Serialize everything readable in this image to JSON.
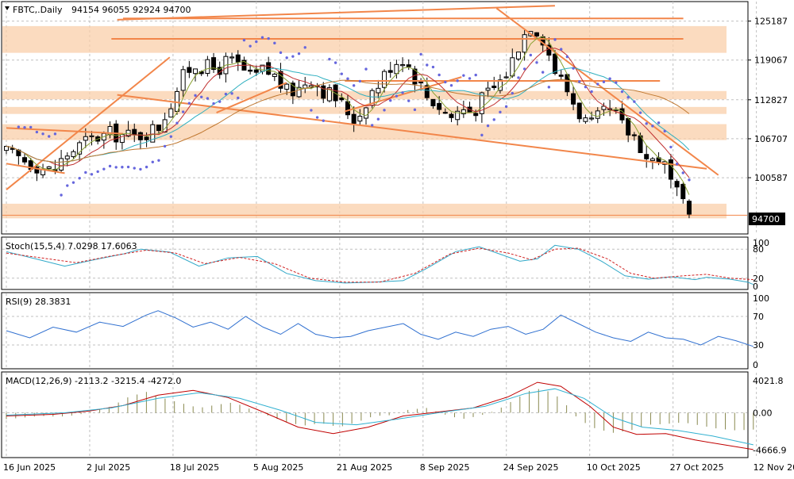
{
  "header": {
    "symbol": "FBTC,.Daily",
    "ohlc": "94154 96055 92924 94700"
  },
  "colors": {
    "background": "#ffffff",
    "grid": "#c0c0c0",
    "frame": "#000000",
    "bull": "#ffffff",
    "bear": "#000000",
    "zone": "#f9cfa9",
    "trend": "#f2864a",
    "psar": "#6666dd",
    "ma_fast": "#88a030",
    "ma_mid": "#c03030",
    "ma_slow": "#30b0c0",
    "ma_long": "#c07830",
    "stoch_main": "#30a8c8",
    "stoch_signal": "#d02020",
    "rsi": "#3070d0",
    "macd_hist": "#8a8a50",
    "macd_line": "#c00000",
    "macd_signal": "#30b0d0"
  },
  "chart_data": [
    {
      "type": "candlestick",
      "panel": "price",
      "symbol": "FBTC",
      "timeframe": "Daily",
      "last_price": 94700,
      "last_price_label": "94700",
      "ylim": [
        92000,
        128000
      ],
      "y_ticks": [
        125187,
        119067,
        112827,
        106707,
        100587
      ],
      "y_tick_labels": [
        "125187",
        "119067",
        "112827",
        "106707",
        "100587"
      ],
      "x_labels": [
        "16 Jun 2025",
        "2 Jul 2025",
        "18 Jul 2025",
        "5 Aug 2025",
        "21 Aug 2025",
        "8 Sep 2025",
        "24 Sep 2025",
        "10 Oct 2025",
        "27 Oct 2025",
        "12 Nov 2025"
      ],
      "x_label_index": [
        0,
        12,
        24,
        36,
        48,
        60,
        72,
        84,
        96,
        108
      ],
      "num_bars": 113,
      "close_path": [
        [
          0,
          104500
        ],
        [
          4,
          103000
        ],
        [
          8,
          101500
        ],
        [
          10,
          104000
        ],
        [
          14,
          106500
        ],
        [
          18,
          107500
        ],
        [
          22,
          107000
        ],
        [
          26,
          108500
        ],
        [
          28,
          112000
        ],
        [
          30,
          116000
        ],
        [
          32,
          118500
        ],
        [
          34,
          118000
        ],
        [
          36,
          117500
        ],
        [
          38,
          119000
        ],
        [
          40,
          118000
        ],
        [
          42,
          116000
        ],
        [
          44,
          117500
        ],
        [
          46,
          116500
        ],
        [
          48,
          114000
        ],
        [
          50,
          114500
        ],
        [
          52,
          116500
        ],
        [
          54,
          114500
        ],
        [
          56,
          113500
        ],
        [
          58,
          111500
        ],
        [
          60,
          109500
        ],
        [
          62,
          113500
        ],
        [
          64,
          115500
        ],
        [
          66,
          118500
        ],
        [
          68,
          119500
        ],
        [
          70,
          116500
        ],
        [
          72,
          113500
        ],
        [
          74,
          112000
        ],
        [
          76,
          110000
        ],
        [
          78,
          111500
        ],
        [
          80,
          111000
        ],
        [
          82,
          113500
        ],
        [
          84,
          115000
        ],
        [
          86,
          117500
        ],
        [
          88,
          122000
        ],
        [
          90,
          125000
        ],
        [
          92,
          122500
        ],
        [
          94,
          117500
        ],
        [
          96,
          114500
        ],
        [
          98,
          111000
        ],
        [
          100,
          108500
        ],
        [
          102,
          110500
        ],
        [
          104,
          111000
        ],
        [
          106,
          108000
        ],
        [
          108,
          107000
        ],
        [
          110,
          103000
        ],
        [
          112,
          104000
        ],
        [
          113,
          102000
        ],
        [
          114,
          99500
        ],
        [
          116,
          96000
        ],
        [
          117,
          94700
        ]
      ],
      "zones": [
        [
          124400,
          120200
        ],
        [
          114200,
          112900
        ],
        [
          111700,
          110600
        ],
        [
          109000,
          106500
        ],
        [
          96500,
          94200
        ]
      ],
      "trendlines": [
        [
          [
            19,
            125400
          ],
          [
            94,
            127600
          ]
        ],
        [
          [
            0,
            98700
          ],
          [
            28,
            119500
          ]
        ],
        [
          [
            19,
            113600
          ],
          [
            120,
            102000
          ]
        ],
        [
          [
            84,
            127200
          ],
          [
            122,
            101000
          ]
        ],
        [
          [
            0,
            108400
          ],
          [
            20,
            107500
          ]
        ],
        [
          [
            0,
            102800
          ],
          [
            10,
            101300
          ]
        ],
        [
          [
            58,
            111000
          ],
          [
            78,
            116400
          ]
        ],
        [
          [
            36,
            110800
          ],
          [
            48,
            115500
          ]
        ],
        [
          [
            20,
            125600
          ],
          [
            116,
            125600
          ]
        ],
        [
          [
            18,
            122400
          ],
          [
            116,
            122400
          ]
        ],
        [
          [
            58,
            115800
          ],
          [
            112,
            115800
          ]
        ]
      ]
    },
    {
      "type": "line",
      "panel": "stochastic",
      "title": "Stoch(15,5,4) 7.0298 17.6063",
      "ylim": [
        0,
        100
      ],
      "y_ticks": [
        80,
        20
      ],
      "y_tick_labels": [
        "80",
        "20"
      ],
      "top_label": "100",
      "bottom_label": "0",
      "series": [
        {
          "name": "main",
          "values": [
            [
              0,
              75
            ],
            [
              5,
              60
            ],
            [
              10,
              45
            ],
            [
              15,
              58
            ],
            [
              20,
              70
            ],
            [
              23,
              80
            ],
            [
              28,
              74
            ],
            [
              33,
              45
            ],
            [
              38,
              62
            ],
            [
              43,
              65
            ],
            [
              48,
              30
            ],
            [
              53,
              15
            ],
            [
              58,
              10
            ],
            [
              63,
              12
            ],
            [
              68,
              15
            ],
            [
              72,
              40
            ],
            [
              77,
              75
            ],
            [
              81,
              85
            ],
            [
              85,
              68
            ],
            [
              88,
              55
            ],
            [
              91,
              60
            ],
            [
              94,
              88
            ],
            [
              98,
              80
            ],
            [
              102,
              55
            ],
            [
              106,
              25
            ],
            [
              110,
              18
            ],
            [
              114,
              23
            ],
            [
              118,
              17
            ],
            [
              120,
              22
            ],
            [
              124,
              18
            ],
            [
              127,
              12
            ],
            [
              128,
              7
            ]
          ]
        },
        {
          "name": "signal",
          "values": [
            [
              0,
              72
            ],
            [
              6,
              62
            ],
            [
              12,
              52
            ],
            [
              18,
              66
            ],
            [
              24,
              78
            ],
            [
              29,
              72
            ],
            [
              34,
              50
            ],
            [
              40,
              63
            ],
            [
              46,
              50
            ],
            [
              52,
              20
            ],
            [
              58,
              12
            ],
            [
              64,
              12
            ],
            [
              70,
              30
            ],
            [
              76,
              70
            ],
            [
              81,
              82
            ],
            [
              86,
              72
            ],
            [
              90,
              58
            ],
            [
              94,
              80
            ],
            [
              98,
              82
            ],
            [
              103,
              60
            ],
            [
              107,
              30
            ],
            [
              111,
              20
            ],
            [
              116,
              25
            ],
            [
              120,
              28
            ],
            [
              124,
              20
            ],
            [
              128,
              17
            ]
          ]
        }
      ]
    },
    {
      "type": "line",
      "panel": "rsi",
      "title": "RSI(9) 28.3831",
      "ylim": [
        0,
        100
      ],
      "y_ticks": [
        70,
        30
      ],
      "y_tick_labels": [
        "70",
        "30"
      ],
      "top_label": "100",
      "bottom_label": "0",
      "series": [
        {
          "name": "rsi",
          "values": [
            [
              0,
              50
            ],
            [
              4,
              40
            ],
            [
              8,
              55
            ],
            [
              12,
              48
            ],
            [
              16,
              62
            ],
            [
              20,
              56
            ],
            [
              24,
              72
            ],
            [
              26,
              78
            ],
            [
              29,
              68
            ],
            [
              32,
              55
            ],
            [
              35,
              62
            ],
            [
              38,
              52
            ],
            [
              41,
              70
            ],
            [
              44,
              55
            ],
            [
              47,
              45
            ],
            [
              50,
              60
            ],
            [
              53,
              45
            ],
            [
              56,
              40
            ],
            [
              59,
              42
            ],
            [
              62,
              50
            ],
            [
              65,
              55
            ],
            [
              68,
              60
            ],
            [
              71,
              45
            ],
            [
              74,
              38
            ],
            [
              77,
              48
            ],
            [
              80,
              42
            ],
            [
              83,
              52
            ],
            [
              86,
              56
            ],
            [
              89,
              45
            ],
            [
              92,
              52
            ],
            [
              95,
              72
            ],
            [
              98,
              60
            ],
            [
              101,
              48
            ],
            [
              104,
              40
            ],
            [
              107,
              35
            ],
            [
              110,
              48
            ],
            [
              113,
              40
            ],
            [
              116,
              38
            ],
            [
              119,
              30
            ],
            [
              122,
              42
            ],
            [
              125,
              36
            ],
            [
              128,
              28
            ]
          ]
        }
      ]
    },
    {
      "type": "bar_line",
      "panel": "macd",
      "title": "MACD(12,26,9) -2113.2 -3215.4 -4272.0",
      "ylim": [
        -5400,
        4800
      ],
      "y_ticks": [
        4021.8,
        0,
        -4666.9
      ],
      "y_tick_labels": [
        "4021.8",
        "0.00",
        "-4666.9"
      ],
      "histogram": [
        [
          0,
          -800
        ],
        [
          3,
          -600
        ],
        [
          6,
          -400
        ],
        [
          9,
          -500
        ],
        [
          12,
          -300
        ],
        [
          15,
          200
        ],
        [
          18,
          800
        ],
        [
          21,
          2000
        ],
        [
          24,
          2600
        ],
        [
          27,
          1800
        ],
        [
          30,
          1200
        ],
        [
          33,
          600
        ],
        [
          36,
          1000
        ],
        [
          39,
          1300
        ],
        [
          42,
          400
        ],
        [
          45,
          -400
        ],
        [
          48,
          -1200
        ],
        [
          51,
          -1600
        ],
        [
          54,
          -1300
        ],
        [
          57,
          -1800
        ],
        [
          60,
          -1200
        ],
        [
          63,
          -400
        ],
        [
          66,
          -300
        ],
        [
          69,
          400
        ],
        [
          72,
          600
        ],
        [
          75,
          -200
        ],
        [
          78,
          -800
        ],
        [
          81,
          -400
        ],
        [
          84,
          300
        ],
        [
          87,
          1600
        ],
        [
          90,
          2900
        ],
        [
          92,
          3000
        ],
        [
          95,
          1800
        ],
        [
          98,
          -800
        ],
        [
          101,
          -2000
        ],
        [
          104,
          -2500
        ],
        [
          107,
          -2200
        ],
        [
          110,
          -1500
        ],
        [
          113,
          -1400
        ],
        [
          116,
          -1200
        ],
        [
          119,
          -1600
        ],
        [
          122,
          -2000
        ],
        [
          125,
          -2200
        ],
        [
          128,
          -2100
        ]
      ],
      "series": [
        {
          "name": "macd",
          "values": [
            [
              0,
              -400
            ],
            [
              8,
              -200
            ],
            [
              14,
              200
            ],
            [
              20,
              900
            ],
            [
              26,
              2200
            ],
            [
              32,
              2800
            ],
            [
              38,
              1900
            ],
            [
              44,
              100
            ],
            [
              50,
              -1800
            ],
            [
              56,
              -2600
            ],
            [
              62,
              -1800
            ],
            [
              68,
              -400
            ],
            [
              74,
              100
            ],
            [
              80,
              600
            ],
            [
              86,
              2000
            ],
            [
              91,
              3800
            ],
            [
              95,
              3300
            ],
            [
              100,
              800
            ],
            [
              104,
              -1800
            ],
            [
              108,
              -2700
            ],
            [
              113,
              -2600
            ],
            [
              118,
              -3400
            ],
            [
              123,
              -4000
            ],
            [
              128,
              -4600
            ]
          ]
        },
        {
          "name": "signal",
          "values": [
            [
              0,
              -300
            ],
            [
              10,
              0
            ],
            [
              18,
              600
            ],
            [
              26,
              1800
            ],
            [
              33,
              2500
            ],
            [
              40,
              1800
            ],
            [
              47,
              300
            ],
            [
              53,
              -1200
            ],
            [
              60,
              -1500
            ],
            [
              67,
              -800
            ],
            [
              74,
              0
            ],
            [
              82,
              800
            ],
            [
              89,
              2400
            ],
            [
              94,
              3000
            ],
            [
              99,
              1800
            ],
            [
              104,
              -600
            ],
            [
              109,
              -1800
            ],
            [
              115,
              -2200
            ],
            [
              121,
              -2900
            ],
            [
              128,
              -4000
            ]
          ]
        }
      ]
    }
  ]
}
